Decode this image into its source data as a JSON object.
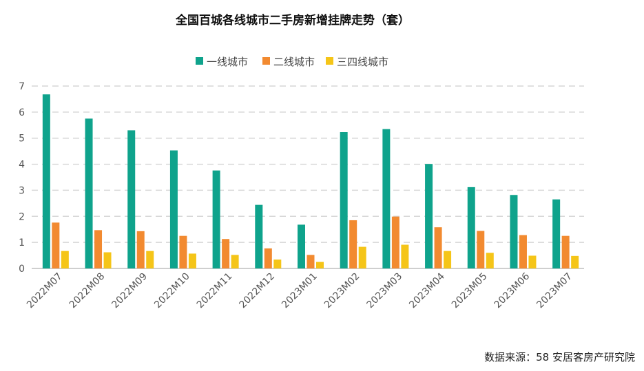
{
  "chart_data": {
    "type": "bar",
    "title": "全国百城各线城市二手房新增挂牌走势（套）",
    "categories": [
      "2022M07",
      "2022M08",
      "2022M09",
      "2022M10",
      "2022M11",
      "2022M12",
      "2023M01",
      "2023M02",
      "2023M03",
      "2023M04",
      "2023M05",
      "2023M06",
      "2023M07"
    ],
    "series": [
      {
        "name": "一线城市",
        "color": "#0FA38C",
        "values": [
          6.68,
          5.75,
          5.3,
          4.53,
          3.76,
          2.44,
          1.68,
          5.23,
          5.35,
          4.01,
          3.12,
          2.82,
          2.65
        ]
      },
      {
        "name": "二线城市",
        "color": "#F28A30",
        "values": [
          1.76,
          1.47,
          1.43,
          1.25,
          1.13,
          0.77,
          0.52,
          1.85,
          1.99,
          1.58,
          1.44,
          1.28,
          1.25
        ]
      },
      {
        "name": "三四线城市",
        "color": "#F5C518",
        "values": [
          0.67,
          0.62,
          0.67,
          0.57,
          0.52,
          0.34,
          0.25,
          0.83,
          0.91,
          0.67,
          0.6,
          0.49,
          0.48
        ]
      }
    ],
    "y_ticks": [
      0,
      1,
      2,
      3,
      4,
      5,
      6,
      7
    ],
    "ylim": [
      0,
      7
    ],
    "xlabel": "",
    "ylabel": "",
    "grid": true,
    "legend_position": "top-center",
    "source": "数据来源：58 安居客房产研究院"
  }
}
